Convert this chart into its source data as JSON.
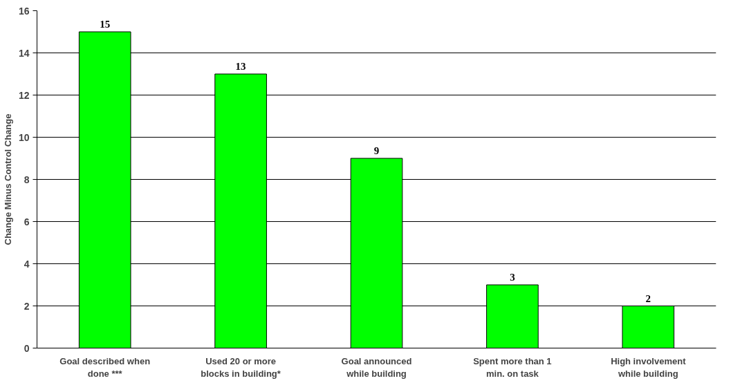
{
  "chart_data": {
    "type": "bar",
    "ylabel": "Change Minus Control Change",
    "categories": [
      "Goal described when done ***",
      "Used 20 or more blocks in building*",
      "Goal announced while building",
      "Spent more than 1 min. on task",
      "High involvement while building"
    ],
    "values": [
      15,
      13,
      9,
      3,
      2
    ],
    "color": "#00ff00",
    "data_labels": true,
    "grid": "y",
    "ylim": [
      0,
      16
    ],
    "yticks": [
      0,
      2,
      4,
      6,
      8,
      10,
      12,
      14,
      16
    ]
  }
}
